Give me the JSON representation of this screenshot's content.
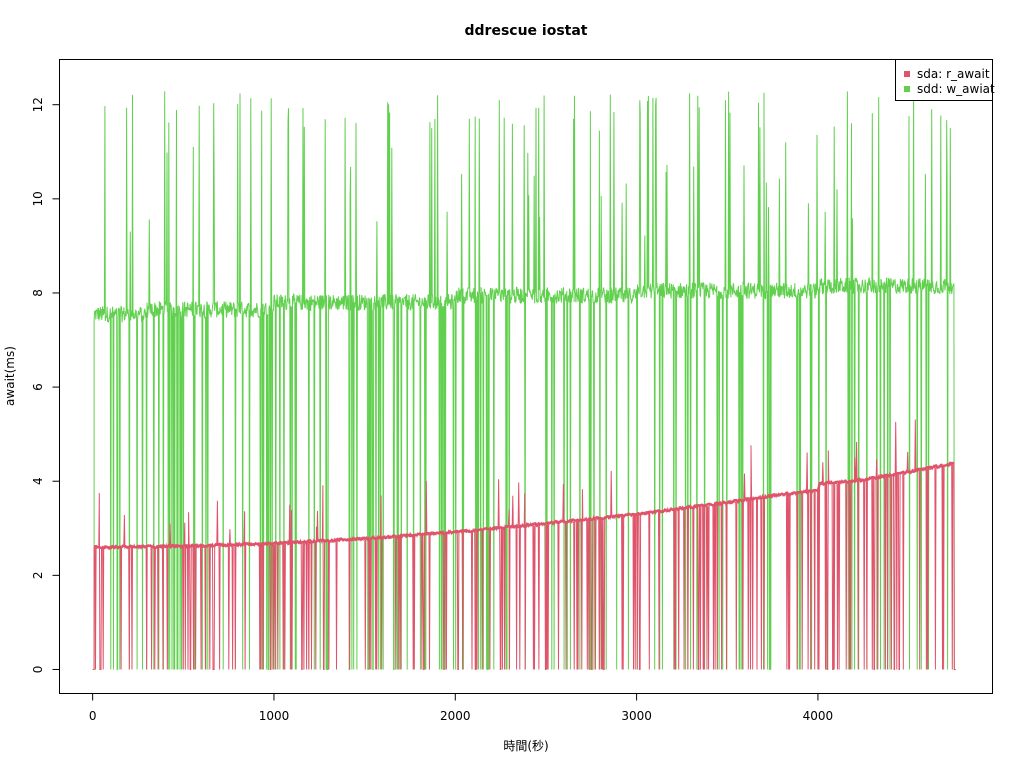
{
  "chart_data": {
    "type": "line",
    "title": "ddrescue iostat",
    "xlabel": "時間(秒)",
    "ylabel": "await(ms)",
    "xlim": [
      -180,
      4960
    ],
    "ylim": [
      -0.5,
      12.95
    ],
    "xticks": [
      0,
      1000,
      2000,
      3000,
      4000
    ],
    "yticks": [
      0,
      2,
      4,
      6,
      8,
      10,
      12
    ],
    "xtick_labels": [
      "0",
      "1000",
      "2000",
      "3000",
      "4000"
    ],
    "ytick_labels": [
      "0",
      "2",
      "4",
      "6",
      "8",
      "10",
      "12"
    ],
    "legend_position": "top-right",
    "grid": false,
    "series": [
      {
        "name": "sdd: w_awiat",
        "color": "#61D04F",
        "description_of_pattern": "oscillates between ~0 and ~7.5-8.2 baseline with spikes up to ~12.4",
        "points": [
          [
            0,
            0
          ],
          [
            10,
            7.5
          ],
          [
            20,
            7.6
          ],
          [
            40,
            7.5
          ],
          [
            60,
            11.8
          ],
          [
            80,
            7.6
          ],
          [
            100,
            7.4
          ],
          [
            120,
            10.6
          ],
          [
            140,
            7.7
          ],
          [
            160,
            12.3
          ],
          [
            200,
            7.5
          ],
          [
            220,
            12.4
          ],
          [
            260,
            7.6
          ],
          [
            300,
            12.1
          ],
          [
            350,
            7.5
          ],
          [
            400,
            12.0
          ],
          [
            450,
            7.6
          ],
          [
            500,
            12.0
          ],
          [
            550,
            7.7
          ],
          [
            600,
            12.3
          ],
          [
            650,
            7.7
          ],
          [
            700,
            12.2
          ],
          [
            750,
            7.8
          ],
          [
            800,
            12.1
          ],
          [
            850,
            7.7
          ],
          [
            900,
            12.0
          ],
          [
            950,
            7.8
          ],
          [
            1000,
            11.9
          ],
          [
            1050,
            7.8
          ],
          [
            1100,
            12.1
          ],
          [
            1150,
            7.8
          ],
          [
            1200,
            12.0
          ],
          [
            1250,
            7.8
          ],
          [
            1300,
            11.9
          ],
          [
            1350,
            7.9
          ],
          [
            1400,
            12.0
          ],
          [
            1450,
            7.8
          ],
          [
            1500,
            11.9
          ],
          [
            1550,
            7.9
          ],
          [
            1600,
            12.0
          ],
          [
            1650,
            7.9
          ],
          [
            1700,
            12.0
          ],
          [
            1750,
            7.9
          ],
          [
            1800,
            12.0
          ],
          [
            1850,
            8.0
          ],
          [
            1900,
            12.0
          ],
          [
            1950,
            7.9
          ],
          [
            2000,
            12.0
          ],
          [
            2050,
            8.0
          ],
          [
            2100,
            11.9
          ],
          [
            2150,
            8.0
          ],
          [
            2200,
            12.0
          ],
          [
            2250,
            8.0
          ],
          [
            2300,
            11.9
          ],
          [
            2350,
            8.0
          ],
          [
            2400,
            12.0
          ],
          [
            2450,
            8.0
          ],
          [
            2500,
            11.9
          ],
          [
            2550,
            8.0
          ],
          [
            2600,
            12.0
          ],
          [
            2650,
            8.0
          ],
          [
            2700,
            12.0
          ],
          [
            2750,
            8.0
          ],
          [
            2800,
            12.0
          ],
          [
            2850,
            8.1
          ],
          [
            2900,
            11.9
          ],
          [
            2950,
            8.0
          ],
          [
            3000,
            9.5
          ],
          [
            3050,
            8.0
          ],
          [
            3100,
            11.8
          ],
          [
            3150,
            8.1
          ],
          [
            3200,
            12.0
          ],
          [
            3250,
            8.1
          ],
          [
            3300,
            12.4
          ],
          [
            3350,
            8.1
          ],
          [
            3400,
            11.9
          ],
          [
            3450,
            8.1
          ],
          [
            3500,
            12.0
          ],
          [
            3550,
            8.1
          ],
          [
            3600,
            12.0
          ],
          [
            3650,
            8.2
          ],
          [
            3700,
            12.0
          ],
          [
            3750,
            8.1
          ],
          [
            3800,
            12.0
          ],
          [
            3850,
            8.1
          ],
          [
            3900,
            12.0
          ],
          [
            3950,
            8.1
          ],
          [
            4000,
            12.0
          ],
          [
            4050,
            8.1
          ],
          [
            4100,
            11.9
          ],
          [
            4150,
            8.2
          ],
          [
            4200,
            11.6
          ],
          [
            4250,
            8.2
          ],
          [
            4300,
            9.8
          ],
          [
            4350,
            8.2
          ],
          [
            4400,
            8.3
          ],
          [
            4450,
            8.1
          ],
          [
            4500,
            8.2
          ],
          [
            4550,
            8.2
          ],
          [
            4600,
            11.8
          ],
          [
            4650,
            8.2
          ],
          [
            4700,
            11.9
          ],
          [
            4740,
            8.2
          ],
          [
            4760,
            0
          ]
        ]
      },
      {
        "name": "sda: r_await",
        "color": "#DF536B",
        "description_of_pattern": "baseline rises steadily from ~2.55 to ~4.35, with periodic drops to 0",
        "points": [
          [
            0,
            0
          ],
          [
            10,
            2.6
          ],
          [
            500,
            2.62
          ],
          [
            1000,
            2.68
          ],
          [
            1500,
            2.78
          ],
          [
            2000,
            2.92
          ],
          [
            2500,
            3.1
          ],
          [
            3000,
            3.3
          ],
          [
            3500,
            3.55
          ],
          [
            3800,
            3.72
          ],
          [
            4000,
            3.8
          ],
          [
            4010,
            3.95
          ],
          [
            4200,
            4.0
          ],
          [
            4500,
            4.2
          ],
          [
            4750,
            4.38
          ],
          [
            4760,
            0
          ]
        ]
      }
    ]
  }
}
